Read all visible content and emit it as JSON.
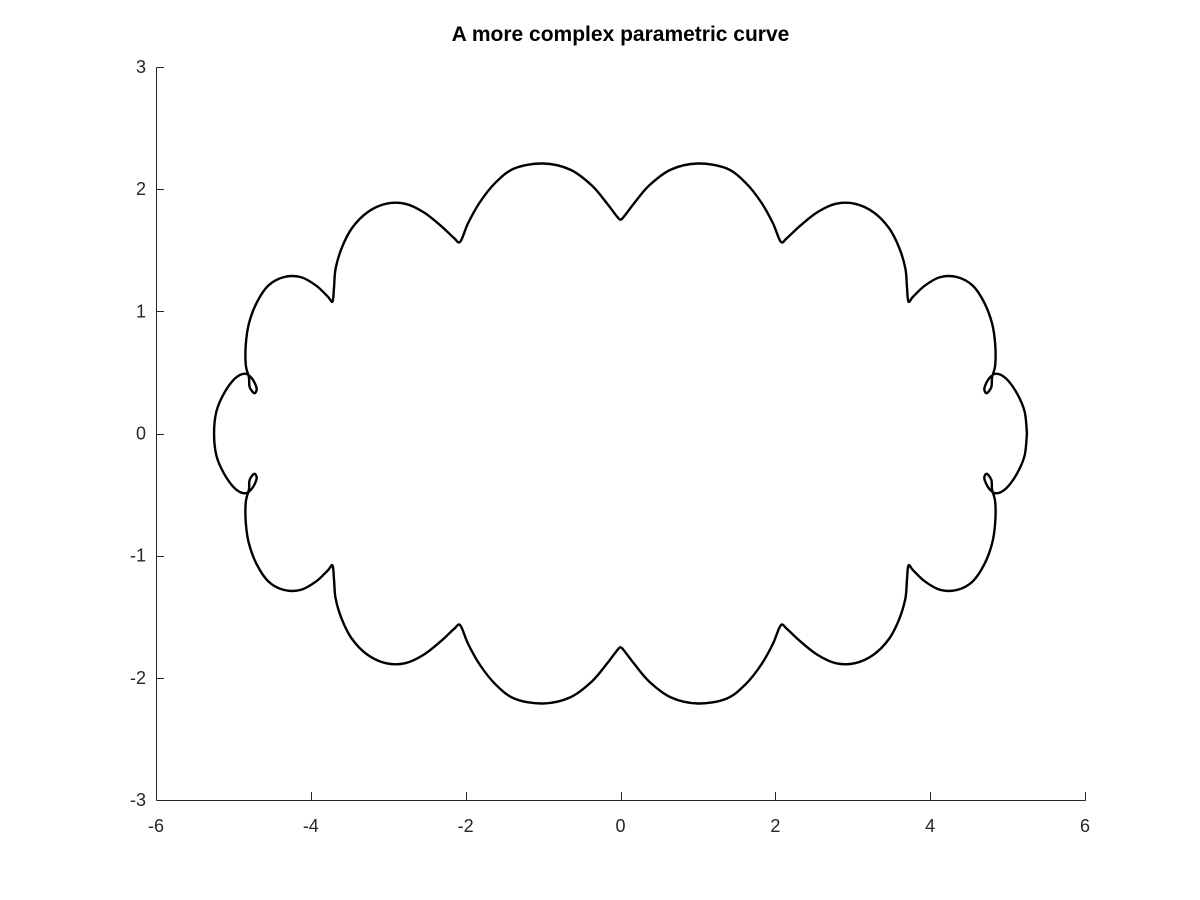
{
  "chart_data": {
    "type": "line",
    "title": "A more complex parametric curve",
    "xlabel": "",
    "ylabel": "",
    "xlim": [
      -6,
      6
    ],
    "ylim": [
      -3,
      3
    ],
    "x_ticks": [
      -6,
      -4,
      -2,
      0,
      2,
      4,
      6
    ],
    "y_ticks": [
      -3,
      -2,
      -1,
      0,
      1,
      2,
      3
    ],
    "x_tick_labels": [
      "-6",
      "-4",
      "-2",
      "0",
      "2",
      "4",
      "6"
    ],
    "y_tick_labels": [
      "-3",
      "-2",
      "-1",
      "0",
      "1",
      "2",
      "3"
    ],
    "grid": false,
    "legend": "none",
    "series": [
      {
        "color": "#000000",
        "points": [
          [
            5.25,
            0.0
          ],
          [
            5.22,
            0.18
          ],
          [
            5.12,
            0.33
          ],
          [
            4.98,
            0.45
          ],
          [
            4.85,
            0.49
          ],
          [
            4.76,
            0.45
          ],
          [
            4.7,
            0.37
          ],
          [
            4.73,
            0.33
          ],
          [
            4.79,
            0.38
          ],
          [
            4.8,
            0.46
          ],
          [
            4.84,
            0.56
          ],
          [
            4.84,
            0.73
          ],
          [
            4.8,
            0.9
          ],
          [
            4.7,
            1.07
          ],
          [
            4.55,
            1.21
          ],
          [
            4.35,
            1.28
          ],
          [
            4.13,
            1.28
          ],
          [
            3.93,
            1.21
          ],
          [
            3.78,
            1.12
          ],
          [
            3.72,
            1.08
          ],
          [
            3.7,
            1.2
          ],
          [
            3.68,
            1.35
          ],
          [
            3.6,
            1.52
          ],
          [
            3.47,
            1.68
          ],
          [
            3.27,
            1.81
          ],
          [
            3.03,
            1.88
          ],
          [
            2.78,
            1.88
          ],
          [
            2.54,
            1.81
          ],
          [
            2.32,
            1.7
          ],
          [
            2.15,
            1.6
          ],
          [
            2.07,
            1.57
          ],
          [
            1.97,
            1.72
          ],
          [
            1.82,
            1.89
          ],
          [
            1.62,
            2.05
          ],
          [
            1.37,
            2.17
          ],
          [
            1.0,
            2.21
          ],
          [
            0.65,
            2.16
          ],
          [
            0.37,
            2.03
          ],
          [
            0.17,
            1.88
          ],
          [
            0.05,
            1.78
          ],
          [
            0.0,
            1.75
          ],
          [
            -0.05,
            1.78
          ],
          [
            -0.17,
            1.88
          ],
          [
            -0.37,
            2.03
          ],
          [
            -0.65,
            2.16
          ],
          [
            -1.0,
            2.21
          ],
          [
            -1.37,
            2.17
          ],
          [
            -1.62,
            2.05
          ],
          [
            -1.82,
            1.89
          ],
          [
            -1.97,
            1.72
          ],
          [
            -2.07,
            1.57
          ],
          [
            -2.15,
            1.6
          ],
          [
            -2.32,
            1.7
          ],
          [
            -2.54,
            1.81
          ],
          [
            -2.78,
            1.88
          ],
          [
            -3.03,
            1.88
          ],
          [
            -3.27,
            1.81
          ],
          [
            -3.47,
            1.68
          ],
          [
            -3.6,
            1.52
          ],
          [
            -3.68,
            1.35
          ],
          [
            -3.7,
            1.2
          ],
          [
            -3.72,
            1.08
          ],
          [
            -3.78,
            1.12
          ],
          [
            -3.93,
            1.21
          ],
          [
            -4.13,
            1.28
          ],
          [
            -4.35,
            1.28
          ],
          [
            -4.55,
            1.21
          ],
          [
            -4.7,
            1.07
          ],
          [
            -4.8,
            0.9
          ],
          [
            -4.84,
            0.73
          ],
          [
            -4.84,
            0.56
          ],
          [
            -4.8,
            0.46
          ],
          [
            -4.79,
            0.38
          ],
          [
            -4.73,
            0.33
          ],
          [
            -4.7,
            0.37
          ],
          [
            -4.76,
            0.45
          ],
          [
            -4.85,
            0.49
          ],
          [
            -4.98,
            0.45
          ],
          [
            -5.12,
            0.33
          ],
          [
            -5.22,
            0.18
          ],
          [
            -5.25,
            0.0
          ],
          [
            -5.22,
            -0.18
          ],
          [
            -5.12,
            -0.33
          ],
          [
            -4.98,
            -0.45
          ],
          [
            -4.85,
            -0.49
          ],
          [
            -4.76,
            -0.45
          ],
          [
            -4.7,
            -0.37
          ],
          [
            -4.73,
            -0.33
          ],
          [
            -4.79,
            -0.38
          ],
          [
            -4.8,
            -0.46
          ],
          [
            -4.84,
            -0.56
          ],
          [
            -4.84,
            -0.73
          ],
          [
            -4.8,
            -0.9
          ],
          [
            -4.7,
            -1.07
          ],
          [
            -4.55,
            -1.21
          ],
          [
            -4.35,
            -1.28
          ],
          [
            -4.13,
            -1.28
          ],
          [
            -3.93,
            -1.21
          ],
          [
            -3.78,
            -1.12
          ],
          [
            -3.72,
            -1.08
          ],
          [
            -3.7,
            -1.2
          ],
          [
            -3.68,
            -1.35
          ],
          [
            -3.6,
            -1.52
          ],
          [
            -3.47,
            -1.68
          ],
          [
            -3.27,
            -1.81
          ],
          [
            -3.03,
            -1.88
          ],
          [
            -2.78,
            -1.88
          ],
          [
            -2.54,
            -1.81
          ],
          [
            -2.32,
            -1.7
          ],
          [
            -2.15,
            -1.6
          ],
          [
            -2.07,
            -1.57
          ],
          [
            -1.97,
            -1.72
          ],
          [
            -1.82,
            -1.89
          ],
          [
            -1.62,
            -2.05
          ],
          [
            -1.37,
            -2.17
          ],
          [
            -1.0,
            -2.21
          ],
          [
            -0.65,
            -2.16
          ],
          [
            -0.37,
            -2.03
          ],
          [
            -0.17,
            -1.88
          ],
          [
            -0.05,
            -1.78
          ],
          [
            0.0,
            -1.75
          ],
          [
            0.05,
            -1.78
          ],
          [
            0.17,
            -1.88
          ],
          [
            0.37,
            -2.03
          ],
          [
            0.65,
            -2.16
          ],
          [
            1.0,
            -2.21
          ],
          [
            1.37,
            -2.17
          ],
          [
            1.62,
            -2.05
          ],
          [
            1.82,
            -1.89
          ],
          [
            1.97,
            -1.72
          ],
          [
            2.07,
            -1.57
          ],
          [
            2.15,
            -1.6
          ],
          [
            2.32,
            -1.7
          ],
          [
            2.54,
            -1.81
          ],
          [
            2.78,
            -1.88
          ],
          [
            3.03,
            -1.88
          ],
          [
            3.27,
            -1.81
          ],
          [
            3.47,
            -1.68
          ],
          [
            3.6,
            -1.52
          ],
          [
            3.68,
            -1.35
          ],
          [
            3.7,
            -1.2
          ],
          [
            3.72,
            -1.08
          ],
          [
            3.78,
            -1.12
          ],
          [
            3.93,
            -1.21
          ],
          [
            4.13,
            -1.28
          ],
          [
            4.35,
            -1.28
          ],
          [
            4.55,
            -1.21
          ],
          [
            4.7,
            -1.07
          ],
          [
            4.8,
            -0.9
          ],
          [
            4.84,
            -0.73
          ],
          [
            4.84,
            -0.56
          ],
          [
            4.8,
            -0.46
          ],
          [
            4.79,
            -0.38
          ],
          [
            4.73,
            -0.33
          ],
          [
            4.7,
            -0.37
          ],
          [
            4.76,
            -0.45
          ],
          [
            4.85,
            -0.49
          ],
          [
            4.98,
            -0.45
          ],
          [
            5.12,
            -0.33
          ],
          [
            5.22,
            -0.18
          ],
          [
            5.25,
            0.0
          ]
        ]
      }
    ]
  }
}
